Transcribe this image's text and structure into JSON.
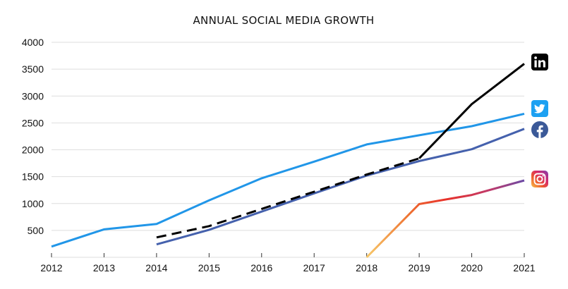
{
  "chart_data": {
    "type": "line",
    "title": "ANNUAL SOCIAL MEDIA GROWTH",
    "xlabel": "",
    "ylabel": "",
    "x": [
      2012,
      2013,
      2014,
      2015,
      2016,
      2017,
      2018,
      2019,
      2020,
      2021
    ],
    "xlim": [
      2012,
      2021
    ],
    "ylim": [
      0,
      4000
    ],
    "yticks": [
      500,
      1000,
      1500,
      2000,
      2500,
      3000,
      3500,
      4000
    ],
    "grid": "horizontal",
    "legend": "icons at line ends (right)",
    "series": [
      {
        "name": "Twitter",
        "icon": "twitter-icon",
        "color": "#2196e8",
        "dashed": false,
        "x": [
          2012,
          2013,
          2014,
          2015,
          2016,
          2017,
          2018,
          2019,
          2020,
          2021
        ],
        "y": [
          200,
          520,
          620,
          1060,
          1470,
          1780,
          2100,
          2270,
          2440,
          2670
        ]
      },
      {
        "name": "Facebook",
        "icon": "facebook-icon",
        "color": "#4561ad",
        "dashed": false,
        "x": [
          2014,
          2015,
          2016,
          2017,
          2018,
          2019,
          2020,
          2021
        ],
        "y": [
          240,
          510,
          850,
          1190,
          1520,
          1790,
          2010,
          2390
        ]
      },
      {
        "name": "LinkedIn",
        "icon": "linkedin-icon",
        "color": "#000000",
        "dashed": true,
        "x": [
          2014,
          2015,
          2016,
          2017,
          2018,
          2019
        ],
        "y": [
          370,
          580,
          900,
          1220,
          1540,
          1840
        ]
      },
      {
        "name": "LinkedIn",
        "icon": "linkedin-icon",
        "color": "#000000",
        "dashed": false,
        "x": [
          2019,
          2020,
          2021
        ],
        "y": [
          1840,
          2850,
          3600
        ]
      },
      {
        "name": "Instagram",
        "icon": "instagram-icon",
        "color": "gradient",
        "gradient": [
          "#f7c96a",
          "#ee7030",
          "#e8322a",
          "#c03a6b",
          "#6b4aa6"
        ],
        "dashed": false,
        "x": [
          2018,
          2019,
          2020,
          2021
        ],
        "y": [
          0,
          990,
          1160,
          1430
        ]
      }
    ]
  }
}
